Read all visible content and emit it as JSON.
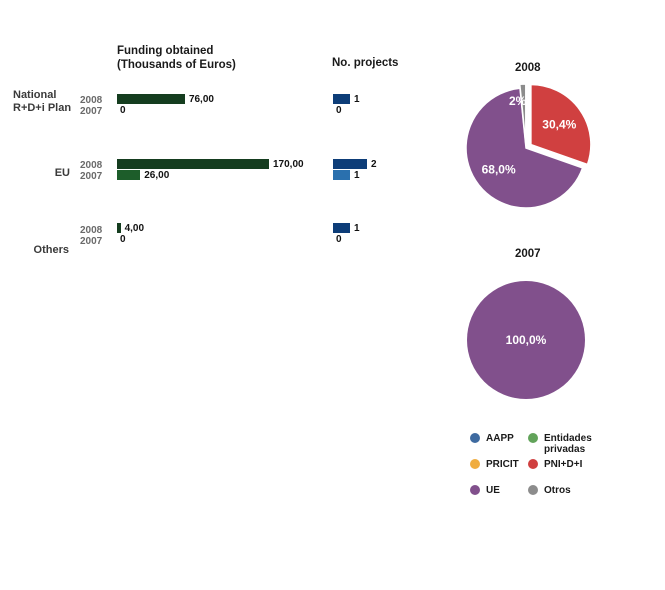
{
  "chart_data": [
    {
      "type": "bar",
      "orientation": "horizontal",
      "title": "Funding obtained\n(Thousands of Euros)",
      "categories": [
        "National R+D+i Plan",
        "EU",
        "Others"
      ],
      "series": [
        {
          "name": "2008",
          "values": [
            76.0,
            170.0,
            4.0
          ],
          "labels": [
            "76,00",
            "170,00",
            "4,00"
          ],
          "color": "#153d1f"
        },
        {
          "name": "2007",
          "values": [
            0,
            26.0,
            0
          ],
          "labels": [
            "0",
            "26,00",
            "0"
          ],
          "color": "#1d5d2a"
        }
      ],
      "xlim": [
        0,
        170
      ]
    },
    {
      "type": "bar",
      "orientation": "horizontal",
      "title": "No. projects",
      "categories": [
        "National R+D+i Plan",
        "EU",
        "Others"
      ],
      "series": [
        {
          "name": "2008",
          "values": [
            1,
            2,
            1
          ],
          "labels": [
            "1",
            "2",
            "1"
          ],
          "color": "#0d3d78"
        },
        {
          "name": "2007",
          "values": [
            0,
            1,
            0
          ],
          "labels": [
            "0",
            "1",
            "0"
          ],
          "color": "#2a70ae"
        }
      ],
      "xlim": [
        0,
        2
      ]
    },
    {
      "type": "pie",
      "title": "2008",
      "slices": [
        {
          "name": "PNI+D+I",
          "value": 30.4,
          "label": "30,4%",
          "color": "#d04040"
        },
        {
          "name": "UE",
          "value": 68.0,
          "label": "68,0%",
          "color": "#81508c"
        },
        {
          "name": "Otros",
          "value": 1.6,
          "label": "2%",
          "color": "#8c8c8c"
        }
      ]
    },
    {
      "type": "pie",
      "title": "2007",
      "slices": [
        {
          "name": "UE",
          "value": 100.0,
          "label": "100,0%",
          "color": "#81508c"
        }
      ]
    }
  ],
  "row_labels": {
    "national": [
      "National",
      "R+D+i Plan"
    ],
    "eu": "EU",
    "others": "Others"
  },
  "year_labels": [
    "2008",
    "2007"
  ],
  "legend": [
    {
      "name": "AAPP",
      "color": "#3e6aa0"
    },
    {
      "name": "Entidades privadas",
      "color": "#62a35a"
    },
    {
      "name": "PRICIT",
      "color": "#f0ad40"
    },
    {
      "name": "PNI+D+I",
      "color": "#d04040"
    },
    {
      "name": "UE",
      "color": "#81508c"
    },
    {
      "name": "Otros",
      "color": "#8c8c8c"
    }
  ]
}
